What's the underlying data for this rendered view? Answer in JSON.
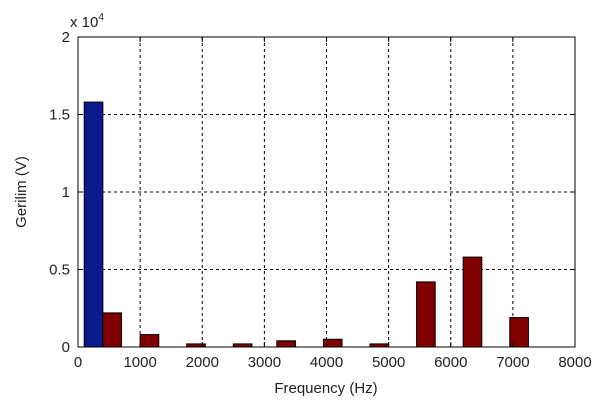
{
  "chart_data": {
    "type": "bar",
    "xlabel": "Frequency (Hz)",
    "ylabel": "Gerilim (V)",
    "xlim": [
      0,
      8000
    ],
    "ylim": [
      0,
      20000
    ],
    "x_ticks": [
      0,
      1000,
      2000,
      3000,
      4000,
      5000,
      6000,
      7000,
      8000
    ],
    "x_tick_labels": [
      "0",
      "1000",
      "2000",
      "3000",
      "4000",
      "5000",
      "6000",
      "7000",
      "8000"
    ],
    "y_ticks": [
      0,
      5000,
      10000,
      15000,
      20000
    ],
    "y_tick_labels": [
      "0",
      "0.5",
      "1",
      "1.5",
      "2"
    ],
    "y_multiplier_base": "x 10",
    "y_multiplier_exponent": "4",
    "grid": true,
    "bar_width": 300,
    "bars": [
      {
        "x": 250,
        "value": 15800,
        "color": "#0a1a8a"
      },
      {
        "x": 550,
        "value": 2200,
        "color": "#800000"
      },
      {
        "x": 1150,
        "value": 800,
        "color": "#800000"
      },
      {
        "x": 1900,
        "value": 200,
        "color": "#800000"
      },
      {
        "x": 2650,
        "value": 200,
        "color": "#800000"
      },
      {
        "x": 3350,
        "value": 400,
        "color": "#800000"
      },
      {
        "x": 4100,
        "value": 500,
        "color": "#800000"
      },
      {
        "x": 4850,
        "value": 200,
        "color": "#800000"
      },
      {
        "x": 5600,
        "value": 4200,
        "color": "#800000"
      },
      {
        "x": 6350,
        "value": 5800,
        "color": "#800000"
      },
      {
        "x": 7100,
        "value": 1900,
        "color": "#800000"
      }
    ]
  }
}
